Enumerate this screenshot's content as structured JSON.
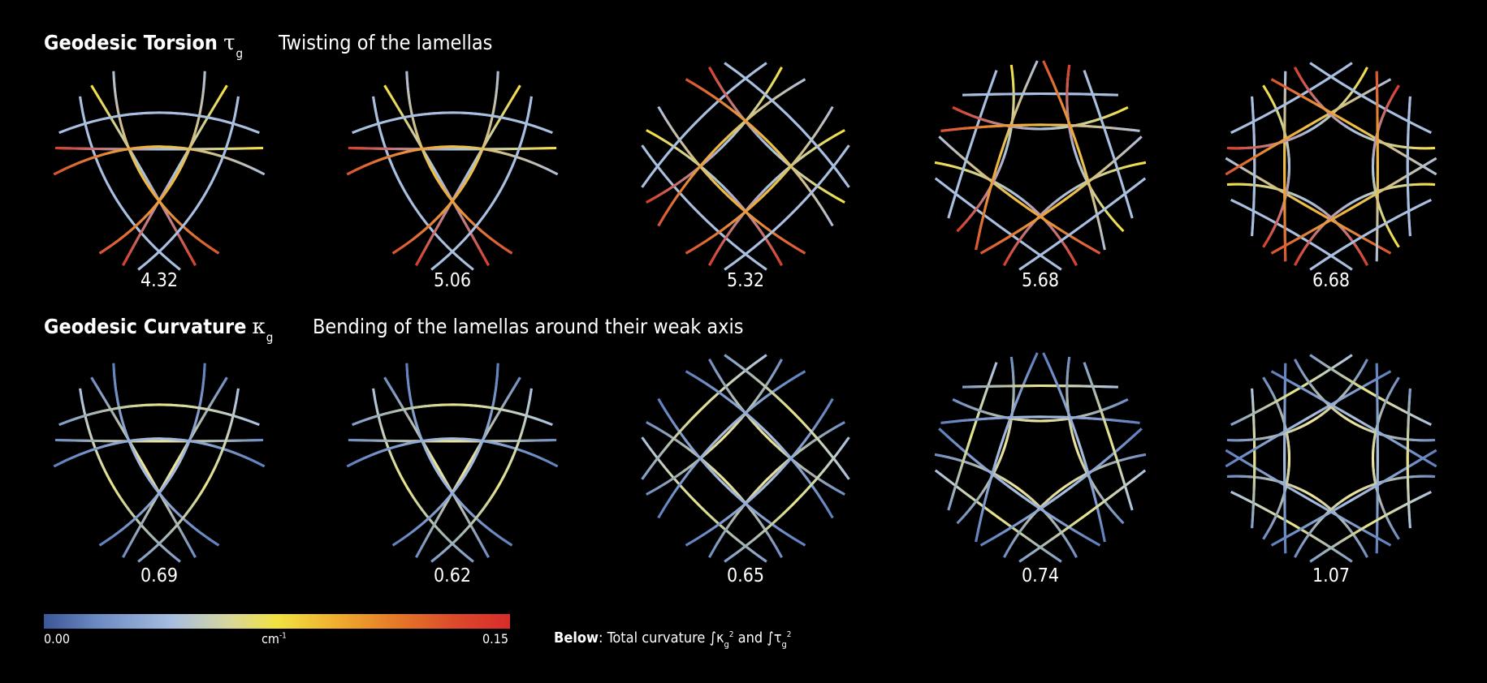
{
  "rows": [
    {
      "title": "Geodesic Torsion",
      "symbol": "τ",
      "subscript": "g",
      "description": "Twisting of the lamellas",
      "values": [
        "4.32",
        "5.06",
        "5.32",
        "5.68",
        "6.68"
      ]
    },
    {
      "title": "Geodesic Curvature",
      "symbol": "κ",
      "subscript": "g",
      "description": "Bending of the lamellas around their weak axis",
      "values": [
        "0.69",
        "0.62",
        "0.65",
        "0.74",
        "1.07"
      ]
    }
  ],
  "colorbar": {
    "min_label": "0.00",
    "unit": "cm",
    "unit_exp": "-1",
    "max_label": "0.15",
    "colors": [
      "#3b5797",
      "#a9bfe0",
      "#f1e242",
      "#e57b28",
      "#d72c2a"
    ]
  },
  "note": {
    "bold": "Below",
    "text": ": Total curvature ",
    "kappa": "∫κ",
    "tau": "∫τ",
    "sub": "g",
    "pow": "2",
    "and": " and "
  }
}
